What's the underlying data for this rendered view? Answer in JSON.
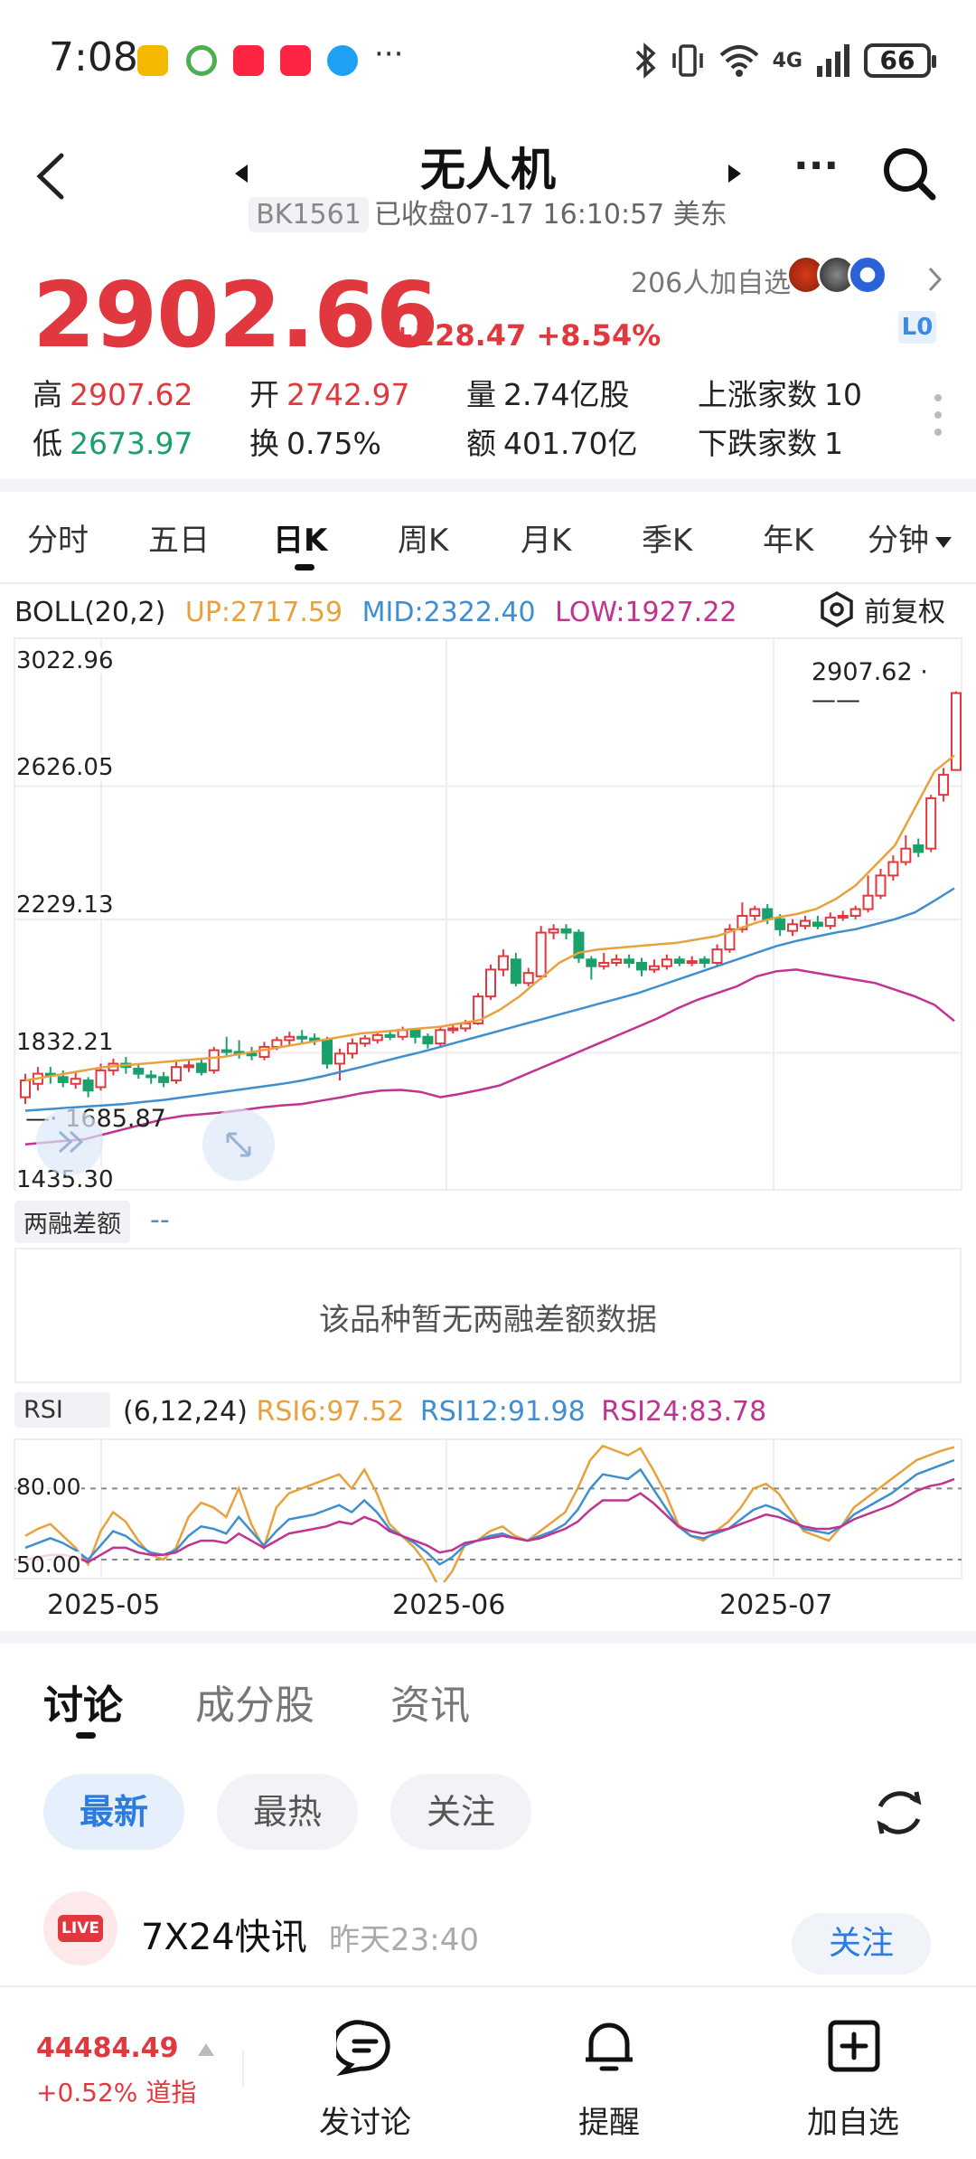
{
  "status_bar": {
    "time": "7:08",
    "network": "4G",
    "battery": "66"
  },
  "header": {
    "title": "无人机",
    "code": "BK1561",
    "status": "已收盘07-17 16:10:57 美东"
  },
  "quote": {
    "price": "2902.66",
    "change": "+228.47",
    "change_pct": "+8.54%",
    "watchers": "206人加自选",
    "level_badge": "L0",
    "high_label": "高",
    "high": "2907.62",
    "low_label": "低",
    "low": "2673.97",
    "open_label": "开",
    "open": "2742.97",
    "turnover_label": "换",
    "turnover": "0.75%",
    "volume_label": "量",
    "volume": "2.74亿股",
    "amount_label": "额",
    "amount": "401.70亿",
    "up_label": "上涨家数",
    "up_count": "10",
    "down_label": "下跌家数",
    "down_count": "1"
  },
  "period_tabs": [
    "分时",
    "五日",
    "日K",
    "周K",
    "月K",
    "季K",
    "年K",
    "分钟"
  ],
  "active_period": "日K",
  "boll": {
    "label": "BOLL(20,2)",
    "up": "UP:2717.59",
    "mid": "MID:2322.40",
    "low": "LOW:1927.22",
    "adjust": "前复权"
  },
  "main_chart": {
    "y_labels": [
      "3022.96",
      "2626.05",
      "2229.13",
      "1832.21",
      "1435.30"
    ],
    "max_marker": "2907.62",
    "min_marker": "1685.87"
  },
  "margin_panel": {
    "label": "两融差额",
    "value": "--",
    "empty_text": "该品种暂无两融差额数据"
  },
  "rsi_panel": {
    "label": "RSI",
    "params": "(6,12,24)",
    "rsi6": "RSI6:97.52",
    "rsi12": "RSI12:91.98",
    "rsi24": "RSI24:83.78",
    "levels": [
      "80.00",
      "50.00"
    ]
  },
  "x_dates": [
    "2025-05",
    "2025-06",
    "2025-07"
  ],
  "colors": {
    "up": "#e0383e",
    "down": "#1aa06a",
    "boll_up": "#e9a23b",
    "boll_mid": "#3f8fd0",
    "boll_low": "#c0338f"
  },
  "chart_data": {
    "type": "line",
    "ylim": [
      1435.3,
      3022.96
    ],
    "candles": [
      {
        "o": 1700,
        "c": 1750,
        "h": 1770,
        "l": 1680
      },
      {
        "o": 1740,
        "c": 1770,
        "h": 1790,
        "l": 1720
      },
      {
        "o": 1770,
        "c": 1765,
        "h": 1790,
        "l": 1740
      },
      {
        "o": 1760,
        "c": 1745,
        "h": 1780,
        "l": 1730
      },
      {
        "o": 1740,
        "c": 1755,
        "h": 1775,
        "l": 1725
      },
      {
        "o": 1750,
        "c": 1720,
        "h": 1760,
        "l": 1700
      },
      {
        "o": 1730,
        "c": 1780,
        "h": 1800,
        "l": 1720
      },
      {
        "o": 1780,
        "c": 1800,
        "h": 1815,
        "l": 1765
      },
      {
        "o": 1800,
        "c": 1790,
        "h": 1820,
        "l": 1770
      },
      {
        "o": 1785,
        "c": 1770,
        "h": 1800,
        "l": 1755
      },
      {
        "o": 1765,
        "c": 1760,
        "h": 1780,
        "l": 1740
      },
      {
        "o": 1760,
        "c": 1745,
        "h": 1775,
        "l": 1730
      },
      {
        "o": 1750,
        "c": 1790,
        "h": 1805,
        "l": 1740
      },
      {
        "o": 1790,
        "c": 1795,
        "h": 1810,
        "l": 1775
      },
      {
        "o": 1800,
        "c": 1775,
        "h": 1815,
        "l": 1765
      },
      {
        "o": 1780,
        "c": 1840,
        "h": 1850,
        "l": 1770
      },
      {
        "o": 1840,
        "c": 1835,
        "h": 1880,
        "l": 1820
      },
      {
        "o": 1835,
        "c": 1830,
        "h": 1870,
        "l": 1815
      },
      {
        "o": 1830,
        "c": 1825,
        "h": 1850,
        "l": 1810
      },
      {
        "o": 1820,
        "c": 1850,
        "h": 1865,
        "l": 1810
      },
      {
        "o": 1850,
        "c": 1870,
        "h": 1880,
        "l": 1840
      },
      {
        "o": 1870,
        "c": 1880,
        "h": 1895,
        "l": 1855
      },
      {
        "o": 1880,
        "c": 1875,
        "h": 1900,
        "l": 1860
      },
      {
        "o": 1875,
        "c": 1870,
        "h": 1890,
        "l": 1855
      },
      {
        "o": 1870,
        "c": 1800,
        "h": 1880,
        "l": 1785
      },
      {
        "o": 1800,
        "c": 1830,
        "h": 1845,
        "l": 1750
      },
      {
        "o": 1830,
        "c": 1860,
        "h": 1875,
        "l": 1815
      },
      {
        "o": 1860,
        "c": 1875,
        "h": 1885,
        "l": 1850
      },
      {
        "o": 1870,
        "c": 1885,
        "h": 1895,
        "l": 1860
      },
      {
        "o": 1885,
        "c": 1880,
        "h": 1900,
        "l": 1870
      },
      {
        "o": 1880,
        "c": 1900,
        "h": 1910,
        "l": 1870
      },
      {
        "o": 1900,
        "c": 1880,
        "h": 1905,
        "l": 1860
      },
      {
        "o": 1880,
        "c": 1860,
        "h": 1890,
        "l": 1845
      },
      {
        "o": 1860,
        "c": 1900,
        "h": 1910,
        "l": 1850
      },
      {
        "o": 1900,
        "c": 1905,
        "h": 1920,
        "l": 1890
      },
      {
        "o": 1905,
        "c": 1920,
        "h": 1930,
        "l": 1895
      },
      {
        "o": 1920,
        "c": 2000,
        "h": 2010,
        "l": 1915
      },
      {
        "o": 2000,
        "c": 2080,
        "h": 2095,
        "l": 1990
      },
      {
        "o": 2080,
        "c": 2120,
        "h": 2140,
        "l": 2060
      },
      {
        "o": 2110,
        "c": 2040,
        "h": 2130,
        "l": 2030
      },
      {
        "o": 2040,
        "c": 2070,
        "h": 2085,
        "l": 2030
      },
      {
        "o": 2060,
        "c": 2190,
        "h": 2210,
        "l": 2050
      },
      {
        "o": 2190,
        "c": 2200,
        "h": 2215,
        "l": 2170
      },
      {
        "o": 2200,
        "c": 2190,
        "h": 2215,
        "l": 2170
      },
      {
        "o": 2190,
        "c": 2115,
        "h": 2200,
        "l": 2100
      },
      {
        "o": 2110,
        "c": 2090,
        "h": 2120,
        "l": 2050
      },
      {
        "o": 2090,
        "c": 2100,
        "h": 2130,
        "l": 2080
      },
      {
        "o": 2100,
        "c": 2110,
        "h": 2125,
        "l": 2090
      },
      {
        "o": 2110,
        "c": 2100,
        "h": 2125,
        "l": 2085
      },
      {
        "o": 2100,
        "c": 2080,
        "h": 2115,
        "l": 2060
      },
      {
        "o": 2080,
        "c": 2090,
        "h": 2110,
        "l": 2070
      },
      {
        "o": 2090,
        "c": 2110,
        "h": 2125,
        "l": 2080
      },
      {
        "o": 2110,
        "c": 2100,
        "h": 2120,
        "l": 2090
      },
      {
        "o": 2100,
        "c": 2105,
        "h": 2120,
        "l": 2090
      },
      {
        "o": 2110,
        "c": 2100,
        "h": 2120,
        "l": 2085
      },
      {
        "o": 2100,
        "c": 2140,
        "h": 2155,
        "l": 2090
      },
      {
        "o": 2140,
        "c": 2200,
        "h": 2215,
        "l": 2130
      },
      {
        "o": 2200,
        "c": 2240,
        "h": 2280,
        "l": 2190
      },
      {
        "o": 2240,
        "c": 2260,
        "h": 2270,
        "l": 2225
      },
      {
        "o": 2260,
        "c": 2230,
        "h": 2275,
        "l": 2215
      },
      {
        "o": 2230,
        "c": 2200,
        "h": 2245,
        "l": 2180
      },
      {
        "o": 2195,
        "c": 2215,
        "h": 2230,
        "l": 2180
      },
      {
        "o": 2210,
        "c": 2225,
        "h": 2240,
        "l": 2200
      },
      {
        "o": 2220,
        "c": 2210,
        "h": 2240,
        "l": 2200
      },
      {
        "o": 2210,
        "c": 2235,
        "h": 2250,
        "l": 2200
      },
      {
        "o": 2235,
        "c": 2240,
        "h": 2255,
        "l": 2225
      },
      {
        "o": 2240,
        "c": 2260,
        "h": 2270,
        "l": 2230
      },
      {
        "o": 2260,
        "c": 2300,
        "h": 2360,
        "l": 2250
      },
      {
        "o": 2300,
        "c": 2360,
        "h": 2380,
        "l": 2290
      },
      {
        "o": 2360,
        "c": 2400,
        "h": 2420,
        "l": 2345
      },
      {
        "o": 2400,
        "c": 2440,
        "h": 2480,
        "l": 2390
      },
      {
        "o": 2450,
        "c": 2430,
        "h": 2470,
        "l": 2415
      },
      {
        "o": 2440,
        "c": 2590,
        "h": 2600,
        "l": 2430
      },
      {
        "o": 2600,
        "c": 2660,
        "h": 2680,
        "l": 2580
      },
      {
        "o": 2674,
        "c": 2903,
        "h": 2908,
        "l": 2674
      }
    ],
    "boll_up": [
      1750,
      1760,
      1770,
      1780,
      1790,
      1795,
      1800,
      1805,
      1810,
      1815,
      1820,
      1830,
      1840,
      1850,
      1860,
      1870,
      1880,
      1890,
      1895,
      1900,
      1905,
      1910,
      1920,
      1930,
      1960,
      2000,
      2050,
      2100,
      2130,
      2140,
      2145,
      2150,
      2155,
      2160,
      2170,
      2180,
      2200,
      2220,
      2235,
      2245,
      2260,
      2290,
      2330,
      2390,
      2450,
      2560,
      2670,
      2717
    ],
    "boll_mid": [
      1660,
      1664,
      1668,
      1672,
      1676,
      1680,
      1686,
      1692,
      1700,
      1708,
      1716,
      1724,
      1732,
      1740,
      1750,
      1762,
      1776,
      1790,
      1805,
      1820,
      1834,
      1850,
      1866,
      1882,
      1898,
      1914,
      1930,
      1946,
      1962,
      1978,
      1994,
      2010,
      2030,
      2050,
      2070,
      2090,
      2110,
      2130,
      2150,
      2165,
      2178,
      2190,
      2200,
      2215,
      2230,
      2250,
      2285,
      2322
    ],
    "boll_low": [
      1560,
      1565,
      1570,
      1575,
      1590,
      1605,
      1620,
      1635,
      1645,
      1650,
      1655,
      1662,
      1670,
      1676,
      1680,
      1690,
      1700,
      1712,
      1720,
      1722,
      1716,
      1700,
      1710,
      1722,
      1735,
      1760,
      1785,
      1810,
      1835,
      1860,
      1885,
      1910,
      1935,
      1965,
      1990,
      2010,
      2030,
      2060,
      2075,
      2080,
      2070,
      2060,
      2050,
      2040,
      2020,
      2000,
      1975,
      1927
    ],
    "rsi6": [
      60,
      63,
      65,
      60,
      55,
      48,
      62,
      70,
      66,
      58,
      52,
      50,
      55,
      68,
      74,
      72,
      68,
      80,
      65,
      55,
      72,
      78,
      80,
      82,
      84,
      86,
      80,
      88,
      78,
      65,
      60,
      55,
      48,
      38,
      45,
      56,
      58,
      62,
      64,
      60,
      58,
      62,
      66,
      70,
      80,
      92,
      98,
      96,
      94,
      97,
      88,
      78,
      65,
      60,
      58,
      62,
      66,
      72,
      80,
      82,
      78,
      70,
      62,
      60,
      58,
      64,
      72,
      76,
      80,
      84,
      88,
      92,
      94,
      96,
      97.5
    ],
    "rsi12": [
      55,
      57,
      59,
      57,
      54,
      50,
      56,
      62,
      60,
      56,
      53,
      52,
      54,
      60,
      64,
      63,
      61,
      68,
      62,
      56,
      62,
      67,
      68,
      69,
      71,
      73,
      70,
      75,
      70,
      63,
      60,
      57,
      53,
      48,
      51,
      56,
      58,
      60,
      61,
      59,
      58,
      60,
      62,
      65,
      71,
      80,
      86,
      85,
      84,
      88,
      80,
      72,
      64,
      60,
      59,
      61,
      63,
      67,
      71,
      73,
      71,
      67,
      63,
      62,
      61,
      64,
      69,
      72,
      75,
      78,
      82,
      86,
      88,
      90,
      92
    ],
    "rsi24": [
      50,
      51,
      52,
      52,
      51,
      49,
      52,
      55,
      55,
      53,
      52,
      52,
      53,
      56,
      58,
      58,
      57,
      61,
      58,
      55,
      58,
      61,
      62,
      63,
      64,
      66,
      65,
      68,
      66,
      62,
      60,
      58,
      56,
      53,
      54,
      57,
      58,
      59,
      60,
      59,
      58,
      59,
      61,
      63,
      66,
      71,
      75,
      75,
      75,
      78,
      74,
      69,
      64,
      62,
      61,
      62,
      63,
      65,
      67,
      69,
      68,
      66,
      64,
      63,
      63,
      64,
      67,
      69,
      71,
      73,
      76,
      79,
      81,
      82,
      84
    ]
  },
  "discussion": {
    "tabs": [
      "讨论",
      "成分股",
      "资讯"
    ],
    "active_tab": "讨论",
    "filters": [
      "最新",
      "最热",
      "关注"
    ],
    "active_filter": "最新",
    "feed": {
      "badge": "LIVE",
      "title": "7X24快讯",
      "time": "昨天23:40",
      "follow": "关注"
    }
  },
  "bottom_bar": {
    "index_value": "44484.49",
    "index_change": "+0.52%",
    "index_name": "道指",
    "post": "发讨论",
    "alert": "提醒",
    "add_watch": "加自选"
  }
}
